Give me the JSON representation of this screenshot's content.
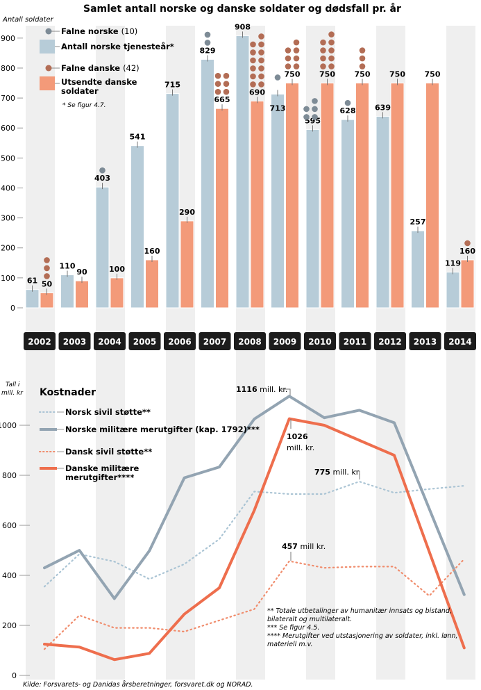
{
  "title": "Samlet antall norske og danske soldater og dødsfall pr. år",
  "colors": {
    "norsk_bar": "#b7ccd8",
    "dansk_bar": "#f39a79",
    "norsk_dot": "#7d8b96",
    "dansk_dot": "#b36d55",
    "norsk_line": "#93a4b2",
    "norsk_dotted": "#aac4d4",
    "dansk_line": "#ee6e4d",
    "dansk_dotted": "#f08c6c",
    "band": "#efefef",
    "year_box": "#1c1c1c"
  },
  "chart_data": [
    {
      "type": "bar",
      "title": "Samlet antall norske og danske soldater og dødsfall pr. år",
      "ylabel": "Antall soldater",
      "xlabel": "",
      "ylim": [
        0,
        900
      ],
      "yticks": [
        0,
        100,
        200,
        300,
        400,
        500,
        600,
        700,
        800,
        900
      ],
      "categories": [
        "2002",
        "2003",
        "2004",
        "2005",
        "2006",
        "2007",
        "2008",
        "2009",
        "2010",
        "2011",
        "2012",
        "2013",
        "2014"
      ],
      "series": [
        {
          "name": "Antall norske tjenesteår*",
          "values": [
            61,
            110,
            403,
            541,
            715,
            829,
            908,
            713,
            595,
            628,
            639,
            257,
            119
          ]
        },
        {
          "name": "Utsendte danske soldater",
          "values": [
            50,
            90,
            100,
            160,
            290,
            665,
            690,
            750,
            750,
            750,
            750,
            750,
            160
          ]
        }
      ],
      "deaths": [
        {
          "name": "Falne norske",
          "total": 10,
          "values": [
            0,
            0,
            1,
            0,
            0,
            2,
            0,
            1,
            5,
            1,
            0,
            0,
            0
          ]
        },
        {
          "name": "Falne danske",
          "total": 42,
          "values": [
            3,
            0,
            0,
            0,
            0,
            6,
            13,
            7,
            9,
            3,
            0,
            0,
            1
          ]
        }
      ],
      "legend": {
        "falne_norske": "Falne norske",
        "falne_norske_count": "(10)",
        "norske_bar": "Antall norske tjenesteår*",
        "falne_danske": "Falne danske",
        "falne_danske_count": "(42)",
        "danske_bar_1": "Utsendte danske",
        "danske_bar_2": "soldater",
        "note": "* Se figur 4.7."
      },
      "legend_position": "top-left",
      "grid": false
    },
    {
      "type": "line",
      "title": "Kostnader",
      "ylabel_1": "Tall i",
      "ylabel_2": "mill. kr",
      "ylim": [
        0,
        1150
      ],
      "yticks": [
        0,
        200,
        400,
        600,
        800,
        1000
      ],
      "x": [
        "2002",
        "2003",
        "2004",
        "2005",
        "2006",
        "2007",
        "2008",
        "2009",
        "2010",
        "2011",
        "2012",
        "2013",
        "2014"
      ],
      "series": [
        {
          "name": "Norsk sivil støtte**",
          "style": "dotted",
          "values": [
            355,
            485,
            455,
            385,
            445,
            545,
            735,
            725,
            725,
            775,
            730,
            745,
            758
          ]
        },
        {
          "name": "Norske militære merutgifter (kap. 1792)***",
          "style": "solid",
          "values": [
            430,
            500,
            307,
            498,
            790,
            833,
            1025,
            1116,
            1030,
            1060,
            1010,
            null,
            323
          ]
        },
        {
          "name": "Dansk sivil støtte**",
          "style": "dotted",
          "values": [
            105,
            240,
            190,
            190,
            175,
            220,
            265,
            457,
            430,
            435,
            435,
            318,
            465
          ]
        },
        {
          "name": "Danske militære merutgifter****",
          "style": "solid",
          "values": [
            125,
            113,
            63,
            88,
            245,
            350,
            660,
            1026,
            1000,
            940,
            880,
            null,
            110
          ]
        }
      ],
      "legend": {
        "norsk_sivil": "Norsk sivil støtte**",
        "norsk_mil": "Norske militære merutgifter (kap. 1792)***",
        "dansk_sivil": "Dansk sivil støtte**",
        "dansk_mil_1": "Danske militære",
        "dansk_mil_2": "merutgifter****"
      },
      "legend_position": "top-left",
      "annotations": {
        "a1116_num": "1116",
        "a1116_unit": " mill. kr.",
        "a1026_num": "1026",
        "a1026_unit": "mill. kr.",
        "a775_num": "775",
        "a775_unit": " mill. kr.",
        "a457_num": "457",
        "a457_unit": " mill kr."
      },
      "footnotes": [
        "** Totale utbetalinger av humanitær innsats og bistand,",
        "bilateralt og multilateralt.",
        "*** Se figur 4.5.",
        "**** Merutgifter ved utstasjonering av soldater, inkl. lønn,",
        "materiell m.v."
      ]
    }
  ],
  "source": "Kilde: Forsvarets- og Danidas årsberetninger, forsvaret.dk og NORAD."
}
